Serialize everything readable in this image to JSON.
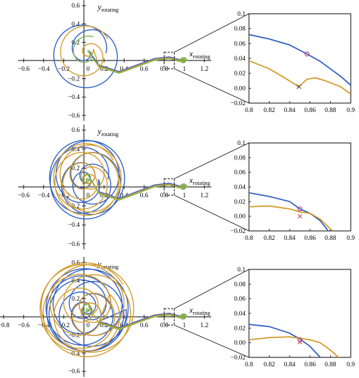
{
  "colors": {
    "blue": "#2f5fc4",
    "orange": "#d39a2a",
    "green": "#7fb24a",
    "red": "#d44",
    "circle": "#b03070",
    "cross": "#c03030",
    "cross_dark": "#502020"
  },
  "chart_data": [
    {
      "type": "line",
      "panel": "top",
      "xlabel": "x",
      "xlabel_sub": "rotating",
      "ylabel": "y",
      "ylabel_sub": "rotating",
      "xlim": [
        -0.6,
        1.2
      ],
      "ylim": [
        -0.6,
        0.6
      ],
      "xticks": [
        "-0.6",
        "-0.4",
        "-0.2",
        "0",
        "0.2",
        "0.4",
        "0.6",
        "0.8",
        "1",
        "1.2"
      ],
      "yticks": [
        "0.6",
        "0.4",
        "0.2",
        "-0.2",
        "-0.4",
        "-0.6"
      ],
      "origin_label": "0",
      "series": [
        {
          "color_key": "blue",
          "loops": 2,
          "scale": 0.38
        },
        {
          "color_key": "orange",
          "loops": 2,
          "scale": 0.3
        },
        {
          "color_key": "green",
          "loops": 1,
          "scale": 0.2
        }
      ],
      "inset": {
        "xlim": [
          0.8,
          0.9
        ],
        "ylim": [
          -0.02,
          0.1
        ],
        "xticks": [
          "0.8",
          "0.82",
          "0.84",
          "0.86",
          "0.88",
          "0.9"
        ],
        "yticks": [
          "0.1",
          "0.08",
          "0.06",
          "0.04",
          "0.02",
          "0.00",
          "-0.02"
        ],
        "blue": [
          [
            0.8,
            0.072
          ],
          [
            0.82,
            0.066
          ],
          [
            0.84,
            0.058
          ],
          [
            0.857,
            0.046
          ],
          [
            0.87,
            0.036
          ],
          [
            0.88,
            0.026
          ],
          [
            0.89,
            0.016
          ],
          [
            0.9,
            0.004
          ]
        ],
        "orange": [
          [
            0.8,
            0.037
          ],
          [
            0.82,
            0.026
          ],
          [
            0.835,
            0.014
          ],
          [
            0.849,
            0.002
          ],
          [
            0.857,
            0.012
          ],
          [
            0.865,
            0.014
          ],
          [
            0.875,
            0.01
          ],
          [
            0.89,
            0.002
          ],
          [
            0.9,
            -0.008
          ]
        ],
        "circle": [
          0.857,
          0.046
        ],
        "cross": [
          0.849,
          0.002
        ]
      }
    },
    {
      "type": "line",
      "panel": "middle",
      "xlabel": "x",
      "xlabel_sub": "rotating",
      "ylabel": "y",
      "ylabel_sub": "rotating",
      "xlim": [
        -0.6,
        1.2
      ],
      "ylim": [
        -0.6,
        0.6
      ],
      "xticks": [
        "-0.6",
        "-0.4",
        "-0.2",
        "0",
        "0.2",
        "0.4",
        "0.6",
        "0.8",
        "1",
        "1.2"
      ],
      "yticks": [
        "0.6",
        "0.4",
        "0.2",
        "-0.2",
        "-0.4",
        "-0.6"
      ],
      "origin_label": "0",
      "series": [
        {
          "color_key": "blue",
          "loops": 7,
          "scale": 0.42
        },
        {
          "color_key": "orange",
          "loops": 7,
          "scale": 0.38
        },
        {
          "color_key": "green",
          "loops": 2,
          "scale": 0.06
        }
      ],
      "inset": {
        "xlim": [
          0.8,
          0.9
        ],
        "ylim": [
          -0.02,
          0.1
        ],
        "xticks": [
          "0.8",
          "0.82",
          "0.84",
          "0.86",
          "0.88",
          "0.9"
        ],
        "yticks": [
          "0.1",
          "0.08",
          "0.06",
          "0.04",
          "0.02",
          "0.00",
          "-0.02"
        ],
        "blue": [
          [
            0.8,
            0.032
          ],
          [
            0.82,
            0.027
          ],
          [
            0.84,
            0.02
          ],
          [
            0.85,
            0.01
          ],
          [
            0.86,
            0.004
          ],
          [
            0.87,
            -0.006
          ],
          [
            0.878,
            -0.02
          ]
        ],
        "orange": [
          [
            0.8,
            0.013
          ],
          [
            0.82,
            0.014
          ],
          [
            0.84,
            0.01
          ],
          [
            0.85,
            0.006
          ],
          [
            0.86,
            0.004
          ],
          [
            0.87,
            -0.004
          ],
          [
            0.882,
            -0.02
          ]
        ],
        "circle": [
          0.85,
          0.01
        ],
        "cross": [
          0.85,
          0.0
        ]
      }
    },
    {
      "type": "line",
      "panel": "bottom",
      "xlabel": "x",
      "xlabel_sub": "rotating",
      "ylabel": "y",
      "ylabel_sub": "rotating",
      "xlim": [
        -0.8,
        1.2
      ],
      "ylim": [
        -0.6,
        0.6
      ],
      "xticks": [
        "-0.8",
        "-0.6",
        "-0.4",
        "-0.2",
        "0",
        "0.2",
        "0.4",
        "0.6",
        "0.8",
        "1",
        "1.2"
      ],
      "yticks": [
        "0.6",
        "0.4",
        "0.2",
        "-0.2",
        "-0.4",
        "-0.6"
      ],
      "origin_label": "0",
      "series": [
        {
          "color_key": "blue",
          "loops": 9,
          "scale": 0.46
        },
        {
          "color_key": "orange",
          "loops": 9,
          "scale": 0.52
        },
        {
          "color_key": "green",
          "loops": 2,
          "scale": 0.06
        }
      ],
      "inset": {
        "xlim": [
          0.8,
          0.9
        ],
        "ylim": [
          -0.02,
          0.1
        ],
        "xticks": [
          "0.8",
          "0.82",
          "0.84",
          "0.86",
          "0.88",
          "0.9"
        ],
        "yticks": [
          "0.1",
          "0.08",
          "0.06",
          "0.04",
          "0.02",
          "0.00",
          "-0.02"
        ],
        "blue": [
          [
            0.8,
            0.025
          ],
          [
            0.82,
            0.022
          ],
          [
            0.84,
            0.013
          ],
          [
            0.85,
            0.005
          ],
          [
            0.86,
            -0.005
          ],
          [
            0.87,
            -0.02
          ]
        ],
        "orange": [
          [
            0.8,
            0.004
          ],
          [
            0.82,
            0.007
          ],
          [
            0.84,
            0.008
          ],
          [
            0.85,
            0.006
          ],
          [
            0.86,
            0.004
          ],
          [
            0.87,
            0.0
          ],
          [
            0.88,
            -0.01
          ],
          [
            0.888,
            -0.02
          ]
        ],
        "circle": [
          0.85,
          0.004
        ],
        "cross": [
          0.85,
          0.001
        ]
      }
    }
  ]
}
